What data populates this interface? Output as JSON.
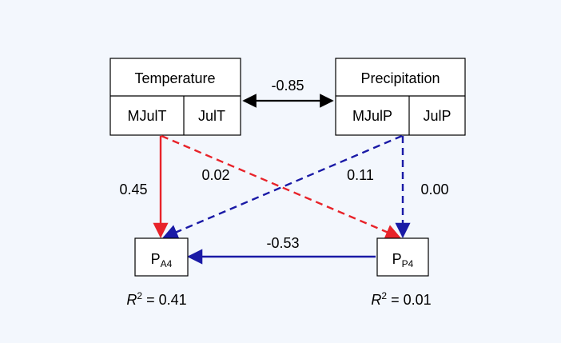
{
  "colors": {
    "background": "#f3f7fd",
    "box_fill": "#ffffff",
    "stroke": "#000000",
    "red": "#e8232a",
    "blue": "#1a1aa6"
  },
  "temperature": {
    "title": "Temperature",
    "left": "MJulT",
    "right": "JulT"
  },
  "precipitation": {
    "title": "Precipitation",
    "left": "MJulP",
    "right": "JulP"
  },
  "correlation": {
    "label": "-0.85"
  },
  "pa4": {
    "main": "P",
    "sub": "A4",
    "r2_symbol": "R",
    "r2_exp": "2",
    "r2_value": " = 0.41"
  },
  "pp4": {
    "main": "P",
    "sub": "P4",
    "r2_symbol": "R",
    "r2_exp": "2",
    "r2_value": " = 0.01"
  },
  "paths": {
    "temp_to_pa4": "0.45",
    "temp_to_pp4": "0.02",
    "precip_to_pa4": "0.11",
    "precip_to_pp4": "0.00",
    "pp4_to_pa4": "-0.53"
  }
}
